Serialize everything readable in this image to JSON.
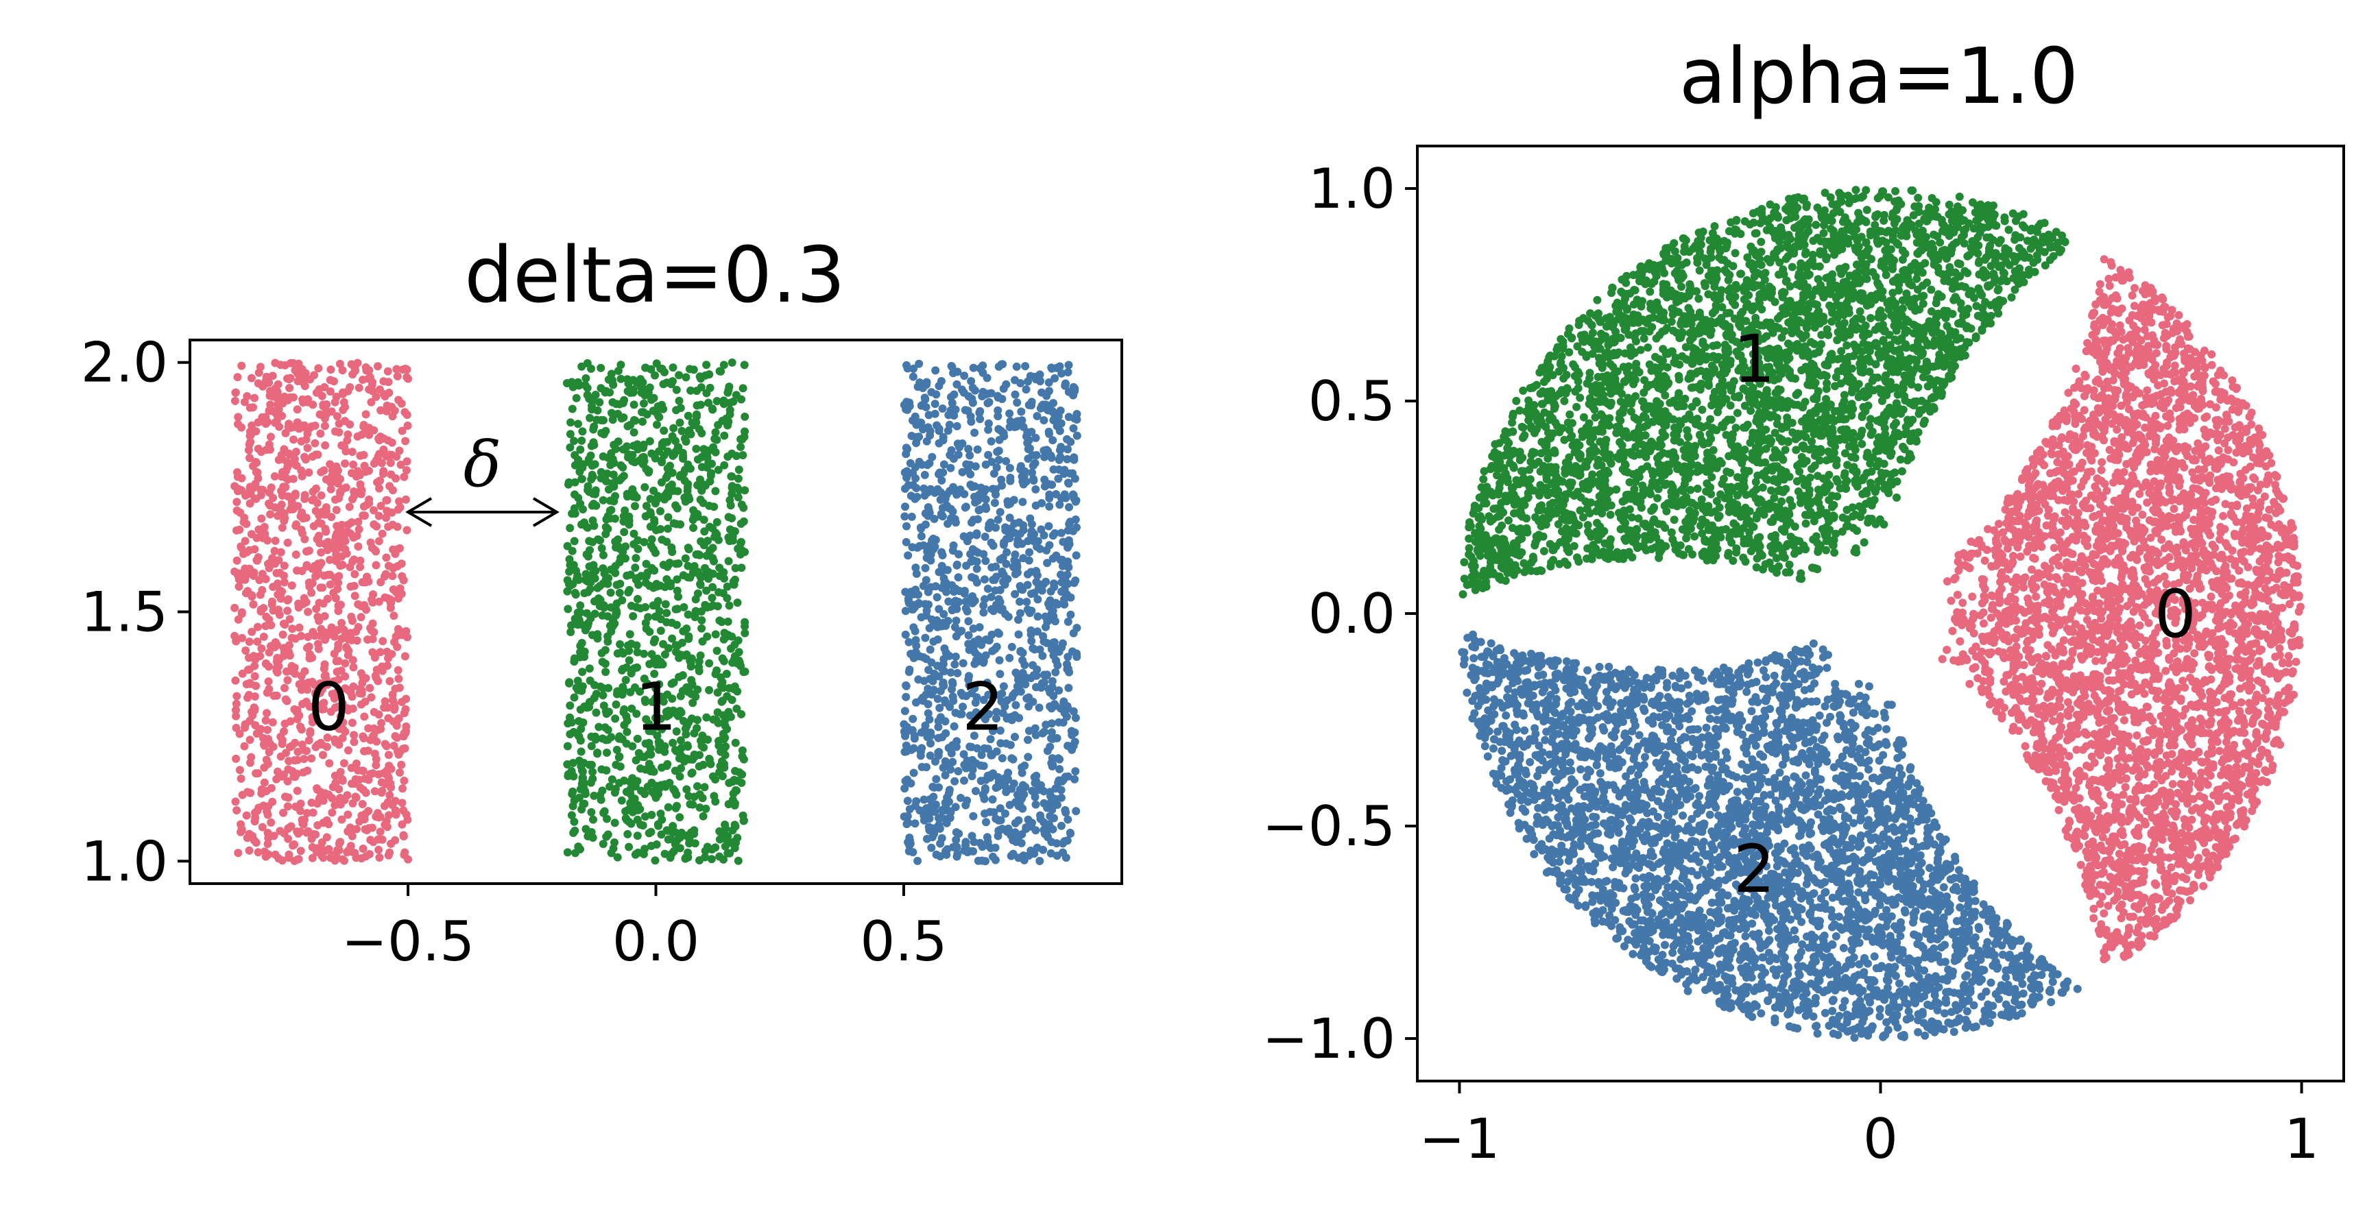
{
  "chart_data": [
    {
      "type": "scatter",
      "title": "delta=0.3",
      "xlabel": "",
      "ylabel": "",
      "xlim": [
        -0.94,
        0.94
      ],
      "ylim": [
        0.955,
        2.045
      ],
      "xticks": [
        -0.5,
        0.0,
        0.5
      ],
      "xtick_labels": [
        "−0.5",
        "0.0",
        "0.5"
      ],
      "yticks": [
        1.0,
        1.5,
        2.0
      ],
      "ytick_labels": [
        "1.0",
        "1.5",
        "2.0"
      ],
      "grid": false,
      "series": [
        {
          "label": "0",
          "color": "#E8697D",
          "x_range": [
            -0.85,
            -0.5
          ],
          "y_range": [
            1.0,
            2.0
          ],
          "points": 1300
        },
        {
          "label": "1",
          "color": "#228833",
          "x_range": [
            -0.18,
            0.18
          ],
          "y_range": [
            1.0,
            2.0
          ],
          "points": 1300
        },
        {
          "label": "2",
          "color": "#4477AA",
          "x_range": [
            0.5,
            0.85
          ],
          "y_range": [
            1.0,
            2.0
          ],
          "points": 1300
        }
      ],
      "cluster_labels": [
        {
          "text": "0",
          "x": -0.66,
          "y": 1.31
        },
        {
          "text": "1",
          "x": 0.0,
          "y": 1.31
        },
        {
          "text": "2",
          "x": 0.66,
          "y": 1.31
        }
      ],
      "annotation": {
        "text": "δ",
        "x_from": -0.5,
        "x_to": -0.2,
        "y": 1.7
      }
    },
    {
      "type": "scatter",
      "title": "alpha=1.0",
      "xlabel": "",
      "ylabel": "",
      "xlim": [
        -1.1,
        1.1
      ],
      "ylim": [
        -1.1,
        1.1
      ],
      "xticks": [
        -1,
        0,
        1
      ],
      "xtick_labels": [
        "−1",
        "0",
        "1"
      ],
      "yticks": [
        -1.0,
        -0.5,
        0.0,
        0.5,
        1.0
      ],
      "ytick_labels": [
        "−1.0",
        "−0.5",
        "0.0",
        "0.5",
        "1.0"
      ],
      "grid": false,
      "series": [
        {
          "label": "0",
          "color": "#E8697D",
          "angle_center_deg": 0,
          "angle_half_width_deg": 58,
          "radius_max": 1.0,
          "points": 3800
        },
        {
          "label": "1",
          "color": "#228833",
          "angle_center_deg": 120,
          "angle_half_width_deg": 58,
          "radius_max": 1.0,
          "points": 3800
        },
        {
          "label": "2",
          "color": "#4477AA",
          "angle_center_deg": 240,
          "angle_half_width_deg": 58,
          "radius_max": 1.0,
          "points": 3800
        }
      ],
      "cluster_labels": [
        {
          "text": "0",
          "x": 0.7,
          "y": 0.0
        },
        {
          "text": "1",
          "x": -0.3,
          "y": 0.6
        },
        {
          "text": "2",
          "x": -0.3,
          "y": -0.6
        }
      ]
    }
  ]
}
